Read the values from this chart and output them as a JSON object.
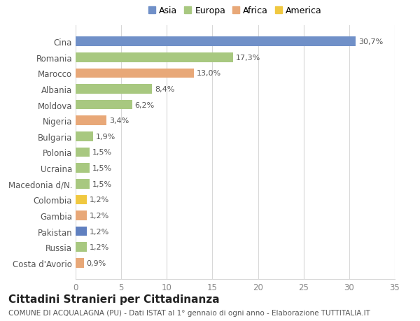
{
  "categories": [
    "Costa d'Avorio",
    "Russia",
    "Pakistan",
    "Gambia",
    "Colombia",
    "Macedonia d/N.",
    "Ucraina",
    "Polonia",
    "Bulgaria",
    "Nigeria",
    "Moldova",
    "Albania",
    "Marocco",
    "Romania",
    "Cina"
  ],
  "values": [
    0.9,
    1.2,
    1.2,
    1.2,
    1.2,
    1.5,
    1.5,
    1.5,
    1.9,
    3.4,
    6.2,
    8.4,
    13.0,
    17.3,
    30.7
  ],
  "labels": [
    "0,9%",
    "1,2%",
    "1,2%",
    "1,2%",
    "1,2%",
    "1,5%",
    "1,5%",
    "1,5%",
    "1,9%",
    "3,4%",
    "6,2%",
    "8,4%",
    "13,0%",
    "17,3%",
    "30,7%"
  ],
  "colors": [
    "#E8A878",
    "#A8C880",
    "#6080C0",
    "#E8A878",
    "#F0C840",
    "#A8C880",
    "#A8C880",
    "#A8C880",
    "#A8C880",
    "#E8A878",
    "#A8C880",
    "#A8C880",
    "#E8A878",
    "#A8C880",
    "#7090C8"
  ],
  "legend_labels": [
    "Asia",
    "Europa",
    "Africa",
    "America"
  ],
  "legend_colors": [
    "#7090C8",
    "#A8C880",
    "#E8A878",
    "#F0C840"
  ],
  "xlim": [
    0,
    35
  ],
  "xticks": [
    0,
    5,
    10,
    15,
    20,
    25,
    30,
    35
  ],
  "title": "Cittadini Stranieri per Cittadinanza",
  "subtitle": "COMUNE DI ACQUALAGNA (PU) - Dati ISTAT al 1° gennaio di ogni anno - Elaborazione TUTTITALIA.IT",
  "bg_color": "#ffffff",
  "grid_color": "#d8d8d8",
  "bar_height": 0.6,
  "label_fontsize": 8,
  "ytick_fontsize": 8.5,
  "xtick_fontsize": 8.5,
  "title_fontsize": 11,
  "subtitle_fontsize": 7.5
}
